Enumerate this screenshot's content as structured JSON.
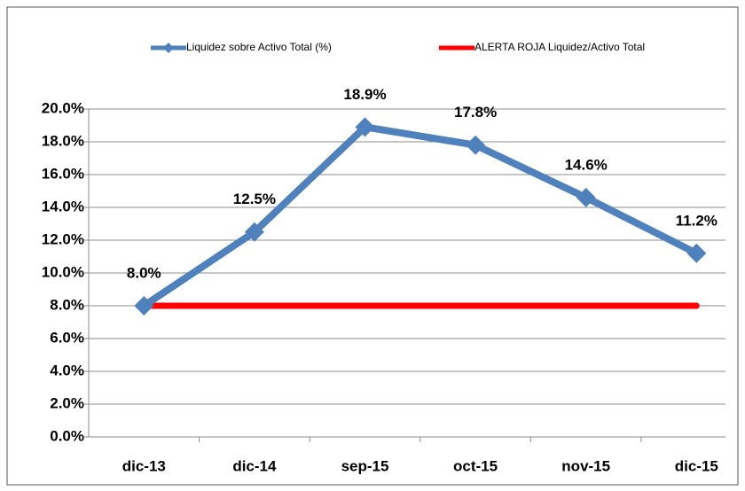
{
  "chart_data": {
    "type": "line",
    "categories": [
      "dic-13",
      "dic-14",
      "sep-15",
      "oct-15",
      "nov-15",
      "dic-15"
    ],
    "series": [
      {
        "name": "Liquidez sobre Activo Total (%)",
        "color": "#4f81bd",
        "values": [
          8.0,
          12.5,
          18.9,
          17.8,
          14.6,
          11.2
        ],
        "value_labels": [
          "8.0%",
          "12.5%",
          "18.9%",
          "17.8%",
          "14.6%",
          "11.2%"
        ]
      },
      {
        "name": "ALERTA ROJA Liquidez/Activo Total",
        "color": "#ff0000",
        "values": [
          8,
          8,
          8,
          8,
          8,
          8
        ]
      }
    ],
    "ylim": [
      0,
      20
    ],
    "yticks": [
      {
        "value": 0,
        "label": "0.0%"
      },
      {
        "value": 2,
        "label": "2.0%"
      },
      {
        "value": 4,
        "label": "4.0%"
      },
      {
        "value": 6,
        "label": "6.0%"
      },
      {
        "value": 8,
        "label": "8.0%"
      },
      {
        "value": 10,
        "label": "10.0%"
      },
      {
        "value": 12,
        "label": "12.0%"
      },
      {
        "value": 14,
        "label": "14.0%"
      },
      {
        "value": 16,
        "label": "16.0%"
      },
      {
        "value": 18,
        "label": "18.0%"
      },
      {
        "value": 20,
        "label": "20.0%"
      }
    ],
    "grid": true,
    "legend": "top"
  }
}
